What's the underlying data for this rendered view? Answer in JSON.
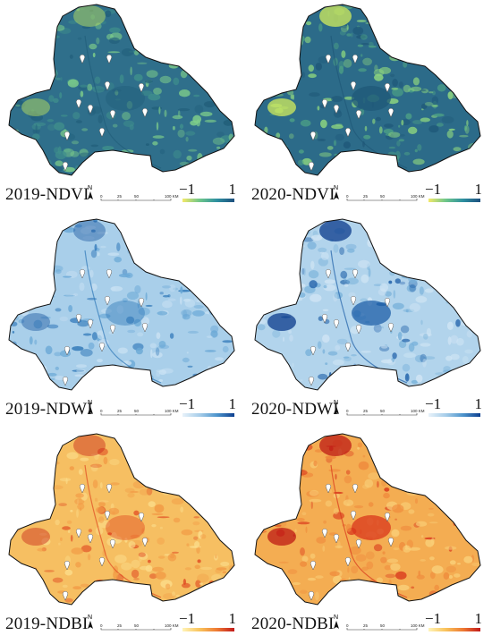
{
  "panels": [
    {
      "caption": "2019-NDVI",
      "legend": {
        "low": "−1",
        "high": "1"
      },
      "colors": {
        "base": "#2f6f8b",
        "dark": "#215e7a",
        "mid": "#3f8f8c",
        "light": "#7fcf8a",
        "bright": "#c8e85a",
        "ramp": [
          "#f3e96a",
          "#6ec68a",
          "#2d8fa0",
          "#1d4f7e"
        ]
      }
    },
    {
      "caption": "2020-NDVI",
      "legend": {
        "low": "−1",
        "high": "1"
      },
      "colors": {
        "base": "#2c6b89",
        "dark": "#1f5878",
        "mid": "#4c9f85",
        "light": "#8ed67f",
        "bright": "#d2ec5c",
        "ramp": [
          "#f3e96a",
          "#6ec68a",
          "#2d8fa0",
          "#1d4f7e"
        ]
      }
    },
    {
      "caption": "2019-NDWI",
      "legend": {
        "low": "−1",
        "high": "1"
      },
      "colors": {
        "base": "#a9cfea",
        "dark": "#2f77b8",
        "mid": "#6aa8d6",
        "light": "#c9e1f3",
        "bright": "#1a56a0",
        "ramp": [
          "#e8f2fa",
          "#a6cde9",
          "#4d94cc",
          "#0d3f8f"
        ]
      }
    },
    {
      "caption": "2020-NDWI",
      "legend": {
        "low": "−1",
        "high": "1"
      },
      "colors": {
        "base": "#b2d4ec",
        "dark": "#1e5fa8",
        "mid": "#78b1da",
        "light": "#d2e6f5",
        "bright": "#0b3b8c",
        "ramp": [
          "#e8f2fa",
          "#a6cde9",
          "#4d94cc",
          "#0d3f8f"
        ]
      }
    },
    {
      "caption": "2019-NDBI",
      "legend": {
        "low": "−1",
        "high": "1"
      },
      "colors": {
        "base": "#f6bf62",
        "dark": "#e04a22",
        "mid": "#f29a45",
        "light": "#fbdc8a",
        "bright": "#c8251a",
        "ramp": [
          "#fff4b8",
          "#f9c35c",
          "#ee7a34",
          "#c21a1a"
        ]
      }
    },
    {
      "caption": "2020-NDBI",
      "legend": {
        "low": "−1",
        "high": "1"
      },
      "colors": {
        "base": "#f4ad52",
        "dark": "#d9371c",
        "mid": "#ef8a3c",
        "light": "#f9cf78",
        "bright": "#bd1b16",
        "ramp": [
          "#fff4b8",
          "#f9c35c",
          "#ee7a34",
          "#c21a1a"
        ]
      }
    }
  ],
  "scale": {
    "ticks": [
      "0",
      "25",
      "50",
      "100 KM"
    ]
  },
  "north_label": "N",
  "markers": 11
}
